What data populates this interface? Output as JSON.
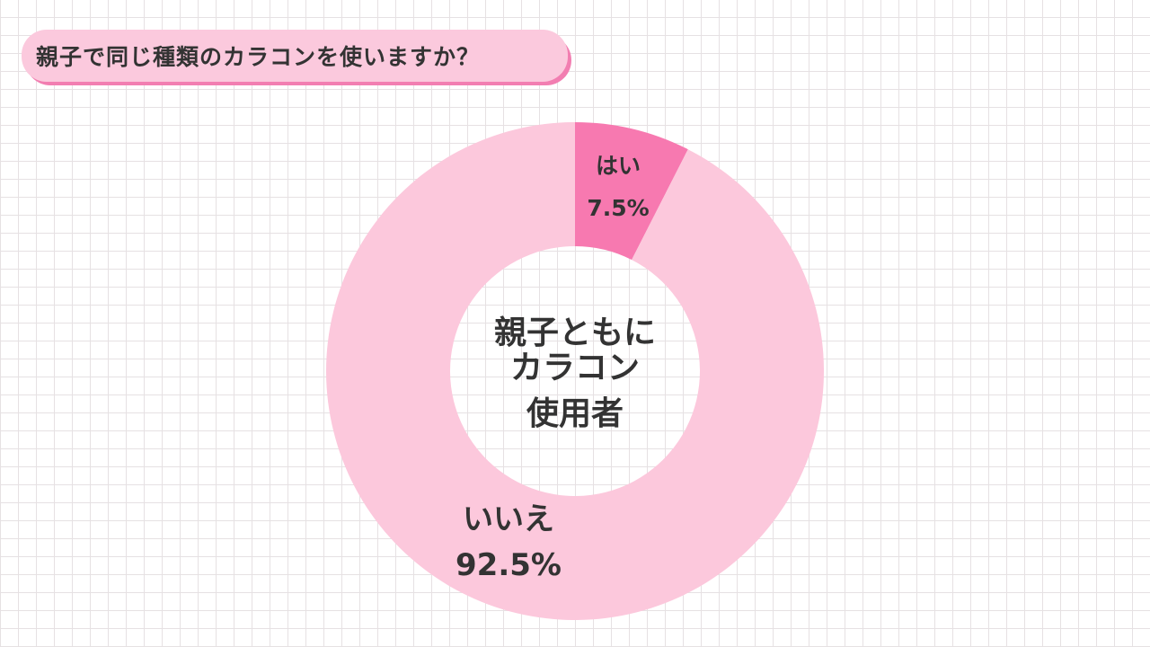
{
  "title": "親子で同じ種類のカラコンを使いますか？",
  "chart_data": {
    "type": "pie",
    "center_label": [
      "親子ともに",
      "カラコン",
      "使用者"
    ],
    "slices": [
      {
        "label": "はい",
        "value": 7.5,
        "display": "7.5%",
        "color": "#f779b0"
      },
      {
        "label": "いいえ",
        "value": 92.5,
        "display": "92.5%",
        "color": "#fcc8dc"
      }
    ]
  }
}
